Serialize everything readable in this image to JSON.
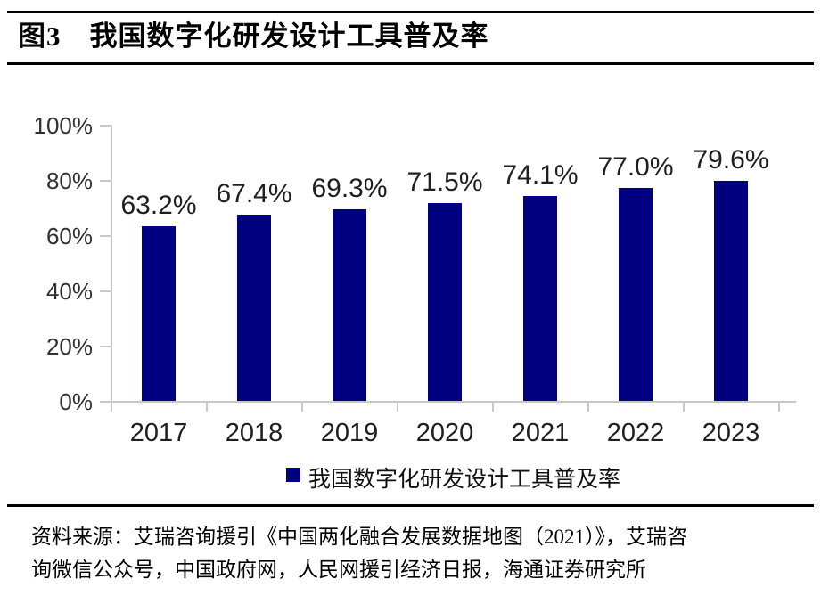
{
  "header": {
    "title": "图3　我国数字化研发设计工具普及率"
  },
  "chart_data": {
    "type": "bar",
    "title": "我国数字化研发设计工具普及率",
    "categories": [
      "2017",
      "2018",
      "2019",
      "2020",
      "2021",
      "2022",
      "2023"
    ],
    "values": [
      63.2,
      67.4,
      69.3,
      71.5,
      74.1,
      77.0,
      79.6
    ],
    "data_labels": [
      "63.2%",
      "67.4%",
      "69.3%",
      "71.5%",
      "74.1%",
      "77.0%",
      "79.6%"
    ],
    "y_tick_labels": [
      "100%",
      "80%",
      "60%",
      "40%",
      "20%",
      "0%"
    ],
    "ylim": [
      0,
      100
    ],
    "xlabel": "",
    "ylabel": "",
    "grid": false,
    "legend_position": "bottom",
    "legend_label": "我国数字化研发设计工具普及率",
    "bar_color": "#000080"
  },
  "legend": {
    "label": "我国数字化研发设计工具普及率"
  },
  "source": {
    "line1": "资料来源：艾瑞咨询援引《中国两化融合发展数据地图（2021）》，艾瑞咨",
    "line2": "询微信公众号，中国政府网，人民网援引经济日报，海通证券研究所"
  },
  "colors": {
    "bar": "#000080",
    "axis": "#c8c8c8",
    "text": "#000000"
  }
}
